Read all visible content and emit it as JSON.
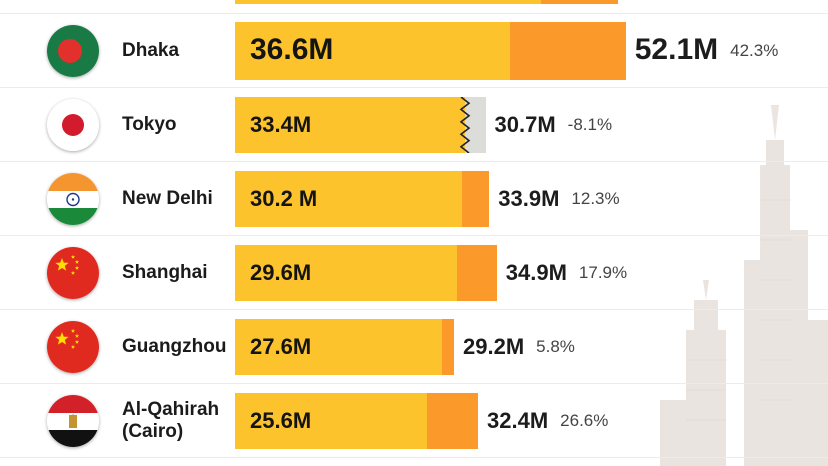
{
  "colors": {
    "current_bar": "#fcc32d",
    "growth_bar": "#fb9a2a",
    "decline_bar": "#dcdcd8",
    "text": "#1b1b1b"
  },
  "chart_data": {
    "type": "bar",
    "orientation": "horizontal",
    "categories": [
      "Dhaka",
      "Tokyo",
      "New Delhi",
      "Shanghai",
      "Guangzhou",
      "Al-Qahirah (Cairo)"
    ],
    "series": [
      {
        "values": [
          36.6,
          33.4,
          30.2,
          29.6,
          27.6,
          25.6
        ]
      },
      {
        "values": [
          52.1,
          30.7,
          33.9,
          34.9,
          29.2,
          32.4
        ]
      }
    ],
    "rows": [
      {
        "city": "Dhaka",
        "flag": "bangladesh-flag",
        "current": 36.6,
        "current_label": "36.6M",
        "projected": 52.1,
        "projected_label": "52.1M",
        "change_label": "42.3%"
      },
      {
        "city": "Tokyo",
        "flag": "japan-flag",
        "current": 33.4,
        "current_label": "33.4M",
        "projected": 30.7,
        "projected_label": "30.7M",
        "change_label": "-8.1%"
      },
      {
        "city": "New Delhi",
        "flag": "india-flag",
        "current": 30.2,
        "current_label": "30.2 M",
        "projected": 33.9,
        "projected_label": "33.9M",
        "change_label": "12.3%"
      },
      {
        "city": "Shanghai",
        "flag": "china-flag",
        "current": 29.6,
        "current_label": "29.6M",
        "projected": 34.9,
        "projected_label": "34.9M",
        "change_label": "17.9%"
      },
      {
        "city": "Guangzhou",
        "flag": "china-flag",
        "current": 27.6,
        "current_label": "27.6M",
        "projected": 29.2,
        "projected_label": "29.2M",
        "change_label": "5.8%"
      },
      {
        "city": "Al-Qahirah\n(Cairo)",
        "flag": "egypt-flag",
        "current": 25.6,
        "current_label": "25.6M",
        "projected": 32.4,
        "projected_label": "32.4M",
        "change_label": "26.6%"
      }
    ],
    "xlim": [
      0,
      75
    ],
    "grid": false
  }
}
